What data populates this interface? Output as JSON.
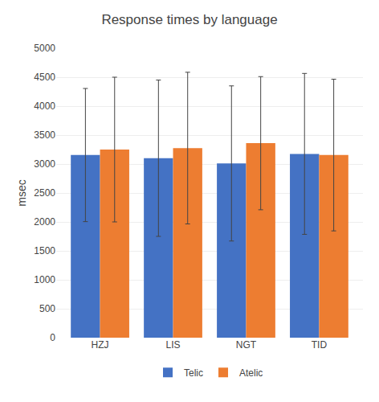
{
  "chart_data": {
    "type": "bar",
    "title": "Response times by language",
    "ylabel": "msec",
    "categories": [
      "HZJ",
      "LIS",
      "NGT",
      "TID"
    ],
    "series": [
      {
        "name": "Telic",
        "color": "#4472C4",
        "values": [
          3155,
          3100,
          3010,
          3175
        ],
        "errors": [
          1150,
          1350,
          1340,
          1390
        ]
      },
      {
        "name": "Atelic",
        "color": "#ED7D31",
        "values": [
          3250,
          3275,
          3360,
          3155
        ],
        "errors": [
          1250,
          1310,
          1150,
          1310
        ]
      }
    ],
    "ylim": [
      0,
      5000
    ],
    "yticks": [
      0,
      500,
      1000,
      1500,
      2000,
      2500,
      3000,
      3500,
      4000,
      4500,
      5000
    ],
    "grid": true,
    "legend": "bottom"
  }
}
